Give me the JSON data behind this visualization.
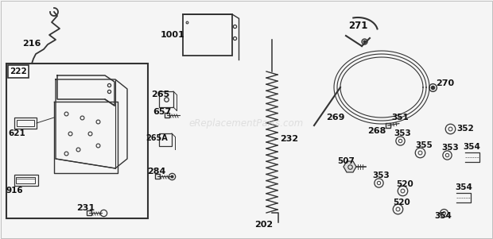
{
  "bg_color": "#f5f5f5",
  "watermark": "eReplacementParts.com",
  "watermark_color": "#cccccc",
  "text_color": "#111111",
  "line_color": "#333333"
}
